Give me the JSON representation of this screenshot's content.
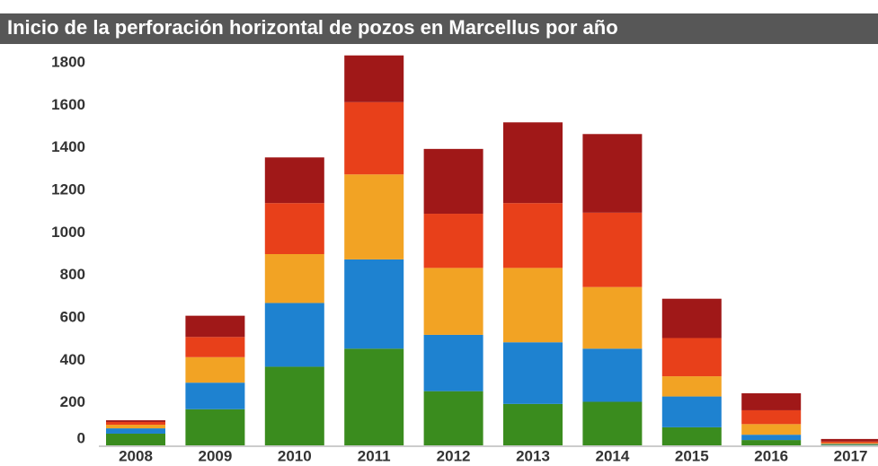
{
  "chart_data": {
    "type": "stacked_bar",
    "title": "Inicio de la perforación horizontal de pozos en Marcellus por año",
    "categories": [
      "2008",
      "2009",
      "2010",
      "2011",
      "2012",
      "2013",
      "2014",
      "2015",
      "2016",
      "2017"
    ],
    "series": [
      {
        "color": "#3a8c1e",
        "values": [
          55,
          170,
          370,
          455,
          255,
          195,
          205,
          85,
          25,
          3
        ]
      },
      {
        "color": "#1e82d0",
        "values": [
          25,
          125,
          300,
          420,
          265,
          290,
          250,
          145,
          25,
          3
        ]
      },
      {
        "color": "#f2a324",
        "values": [
          17,
          120,
          230,
          400,
          315,
          350,
          290,
          95,
          50,
          5
        ]
      },
      {
        "color": "#e8401a",
        "values": [
          13,
          95,
          240,
          340,
          255,
          305,
          350,
          180,
          65,
          7
        ]
      },
      {
        "color": "#a01818",
        "values": [
          8,
          100,
          215,
          220,
          305,
          380,
          370,
          185,
          80,
          12
        ]
      }
    ],
    "ylim": [
      0,
      1800
    ],
    "yticks": [
      0,
      200,
      400,
      600,
      800,
      1000,
      1200,
      1400,
      1600,
      1800
    ]
  }
}
